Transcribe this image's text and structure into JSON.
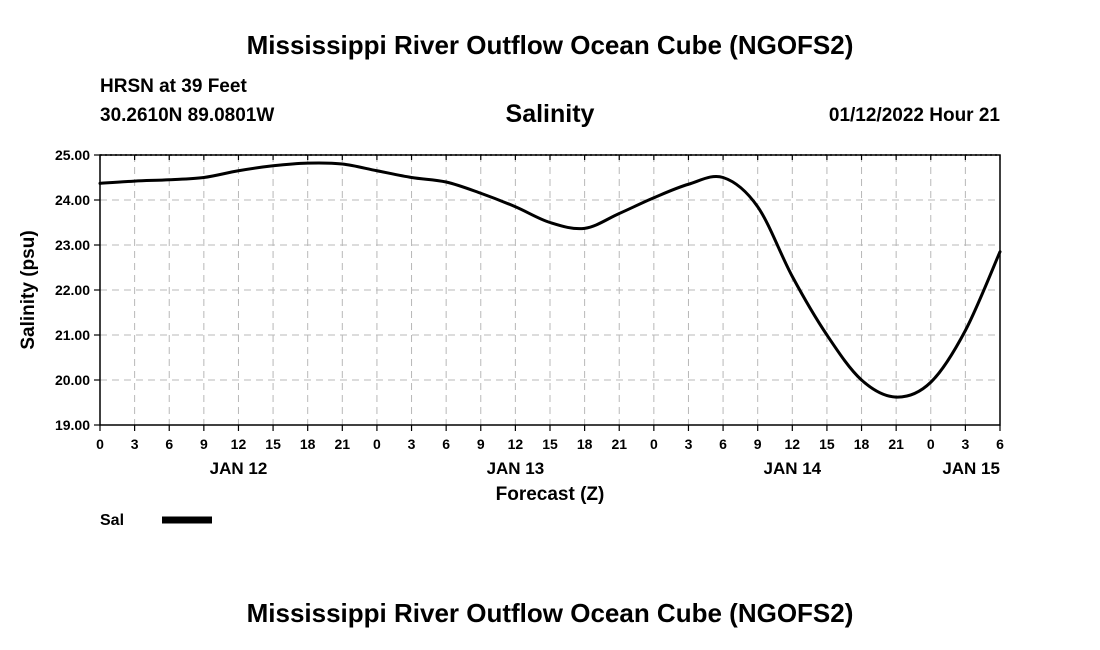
{
  "header": {
    "title": "Mississippi River Outflow Ocean Cube (NGOFS2)",
    "station": "HRSN at 39 Feet",
    "coords": "30.2610N  89.0801W",
    "subtitle": "Salinity",
    "datetime": "01/12/2022 Hour 21"
  },
  "footer": {
    "title": "Mississippi River Outflow Ocean Cube (NGOFS2)"
  },
  "chart_data": {
    "type": "line",
    "title": "Salinity",
    "xlabel": "Forecast (Z)",
    "ylabel": "Salinity (psu)",
    "ylim": [
      19.0,
      25.0
    ],
    "xlim": [
      0,
      78
    ],
    "x_unit": "hours since 2022-01-12 00Z",
    "y_ticks": [
      "19.00",
      "20.00",
      "21.00",
      "22.00",
      "23.00",
      "24.00",
      "25.00"
    ],
    "x_tick_labels": [
      "0",
      "3",
      "6",
      "9",
      "12",
      "15",
      "18",
      "21",
      "0",
      "3",
      "6",
      "9",
      "12",
      "15",
      "18",
      "21",
      "0",
      "3",
      "6",
      "9",
      "12",
      "15",
      "18",
      "21",
      "0",
      "3",
      "6"
    ],
    "day_labels": [
      {
        "label": "JAN 12",
        "hour": 12
      },
      {
        "label": "JAN 13",
        "hour": 36
      },
      {
        "label": "JAN 14",
        "hour": 60
      },
      {
        "label": "JAN 15",
        "hour": 75.5
      }
    ],
    "grid": true,
    "series": [
      {
        "name": "Sal",
        "color": "#000000",
        "x": [
          0,
          3,
          6,
          9,
          12,
          15,
          18,
          21,
          24,
          27,
          30,
          33,
          36,
          39,
          42,
          45,
          48,
          51,
          54,
          57,
          60,
          63,
          66,
          69,
          72,
          75,
          78
        ],
        "values": [
          24.37,
          24.42,
          24.45,
          24.5,
          24.65,
          24.76,
          24.82,
          24.8,
          24.65,
          24.5,
          24.4,
          24.15,
          23.85,
          23.5,
          23.37,
          23.7,
          24.05,
          24.35,
          24.5,
          23.85,
          22.3,
          21.0,
          20.0,
          19.62,
          19.95,
          21.1,
          22.85
        ]
      }
    ]
  }
}
